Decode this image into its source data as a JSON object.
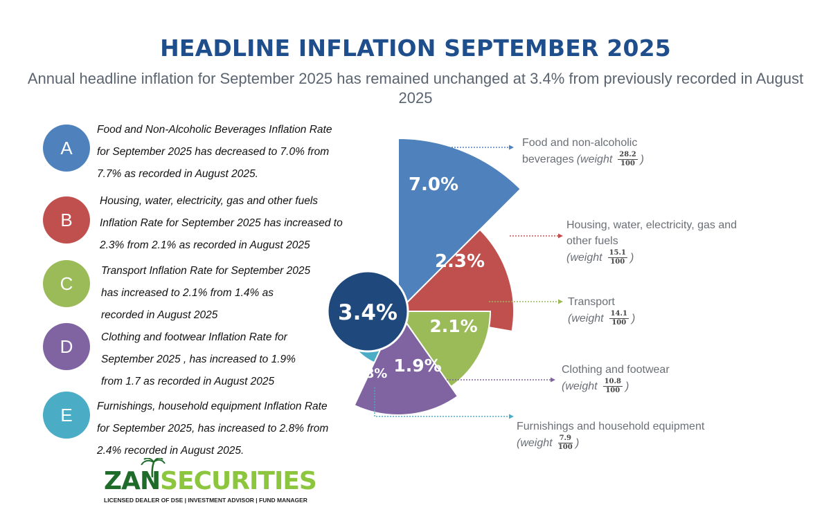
{
  "title": "HEADLINE INFLATION SEPTEMBER 2025",
  "subtitle": "Annual headline inflation for September 2025 has remained unchanged at 3.4% from previously recorded in August 2025",
  "items": [
    {
      "letter": "A",
      "color": "#4f81bd",
      "line1": "Food and Non-Alcoholic Beverages Inflation Rate",
      "line2": "for September 2025 has  decreased to 7.0%  from",
      "line3": "7.7%  as recorded in August 2025."
    },
    {
      "letter": "B",
      "color": "#c0504d",
      "line1": "Housing, water, electricity, gas and other fuels",
      "line2": "Inflation Rate for September 2025 has increased to",
      "line3": "2.3% from 2.1% as recorded in August 2025"
    },
    {
      "letter": "C",
      "color": "#9bbb59",
      "line1": "Transport Inflation Rate for September 2025",
      "line2": "has increased to 2.1% from 1.4% as",
      "line3": "recorded in August 2025"
    },
    {
      "letter": "D",
      "color": "#8064a2",
      "line1": "Clothing and footwear Inflation Rate for",
      "line2": "September 2025 , has increased to 1.9%",
      "line3": "from 1.7 as recorded in August 2025"
    },
    {
      "letter": "E",
      "color": "#4bacc6",
      "line1": "Furnishings, household equipment Inflation Rate",
      "line2": "for September 2025, has increased to 2.8%  from",
      "line3": "2.4% recorded in August 2025."
    }
  ],
  "chart_data": {
    "type": "pie",
    "center_label": "3.4%",
    "center_color": "#1f497d",
    "series": [
      {
        "name": "Food and non-alcoholic beverages",
        "value": 7.0,
        "label": "7.0%",
        "color": "#4f81bd",
        "weight_num": "28.2",
        "weight_den": "100"
      },
      {
        "name": "Housing, water, electricity, gas and other fuels",
        "value": 2.3,
        "label": "2.3%",
        "color": "#c0504d",
        "weight_num": "15.1",
        "weight_den": "100"
      },
      {
        "name": "Transport",
        "value": 2.1,
        "label": "2.1%",
        "color": "#9bbb59",
        "weight_num": "14.1",
        "weight_den": "100"
      },
      {
        "name": "Clothing and footwear",
        "value": 1.9,
        "label": "1.9%",
        "color": "#8064a2",
        "weight_num": "10.8",
        "weight_den": "100"
      },
      {
        "name": "Furnishings and household equipment",
        "value": 2.8,
        "label": "2.8%",
        "color": "#4bacc6",
        "weight_num": "7.9",
        "weight_den": "100"
      }
    ]
  },
  "annotations": [
    {
      "line1": "Food and non-alcoholic",
      "line2_prefix": "beverages",
      "weight_word": "(weight",
      "close": ")"
    },
    {
      "line1": "Housing, water, electricity, gas and",
      "line2_prefix": "other fuels",
      "weight_word": "(weight",
      "close": ")"
    },
    {
      "line1": "Transport",
      "line2_prefix": "",
      "weight_word": "(weight",
      "close": ")"
    },
    {
      "line1": "Clothing and footwear",
      "line2_prefix": "",
      "weight_word": "(weight",
      "close": ")"
    },
    {
      "line1": "Furnishings and household equipment",
      "line2_prefix": "",
      "weight_word": "(weight",
      "close": ")"
    }
  ],
  "logo": {
    "part1": "ZAN",
    "part2": "SECURITIES",
    "tagline": "LICENSED DEALER OF DSE | INVESTMENT ADVISOR | FUND MANAGER"
  }
}
